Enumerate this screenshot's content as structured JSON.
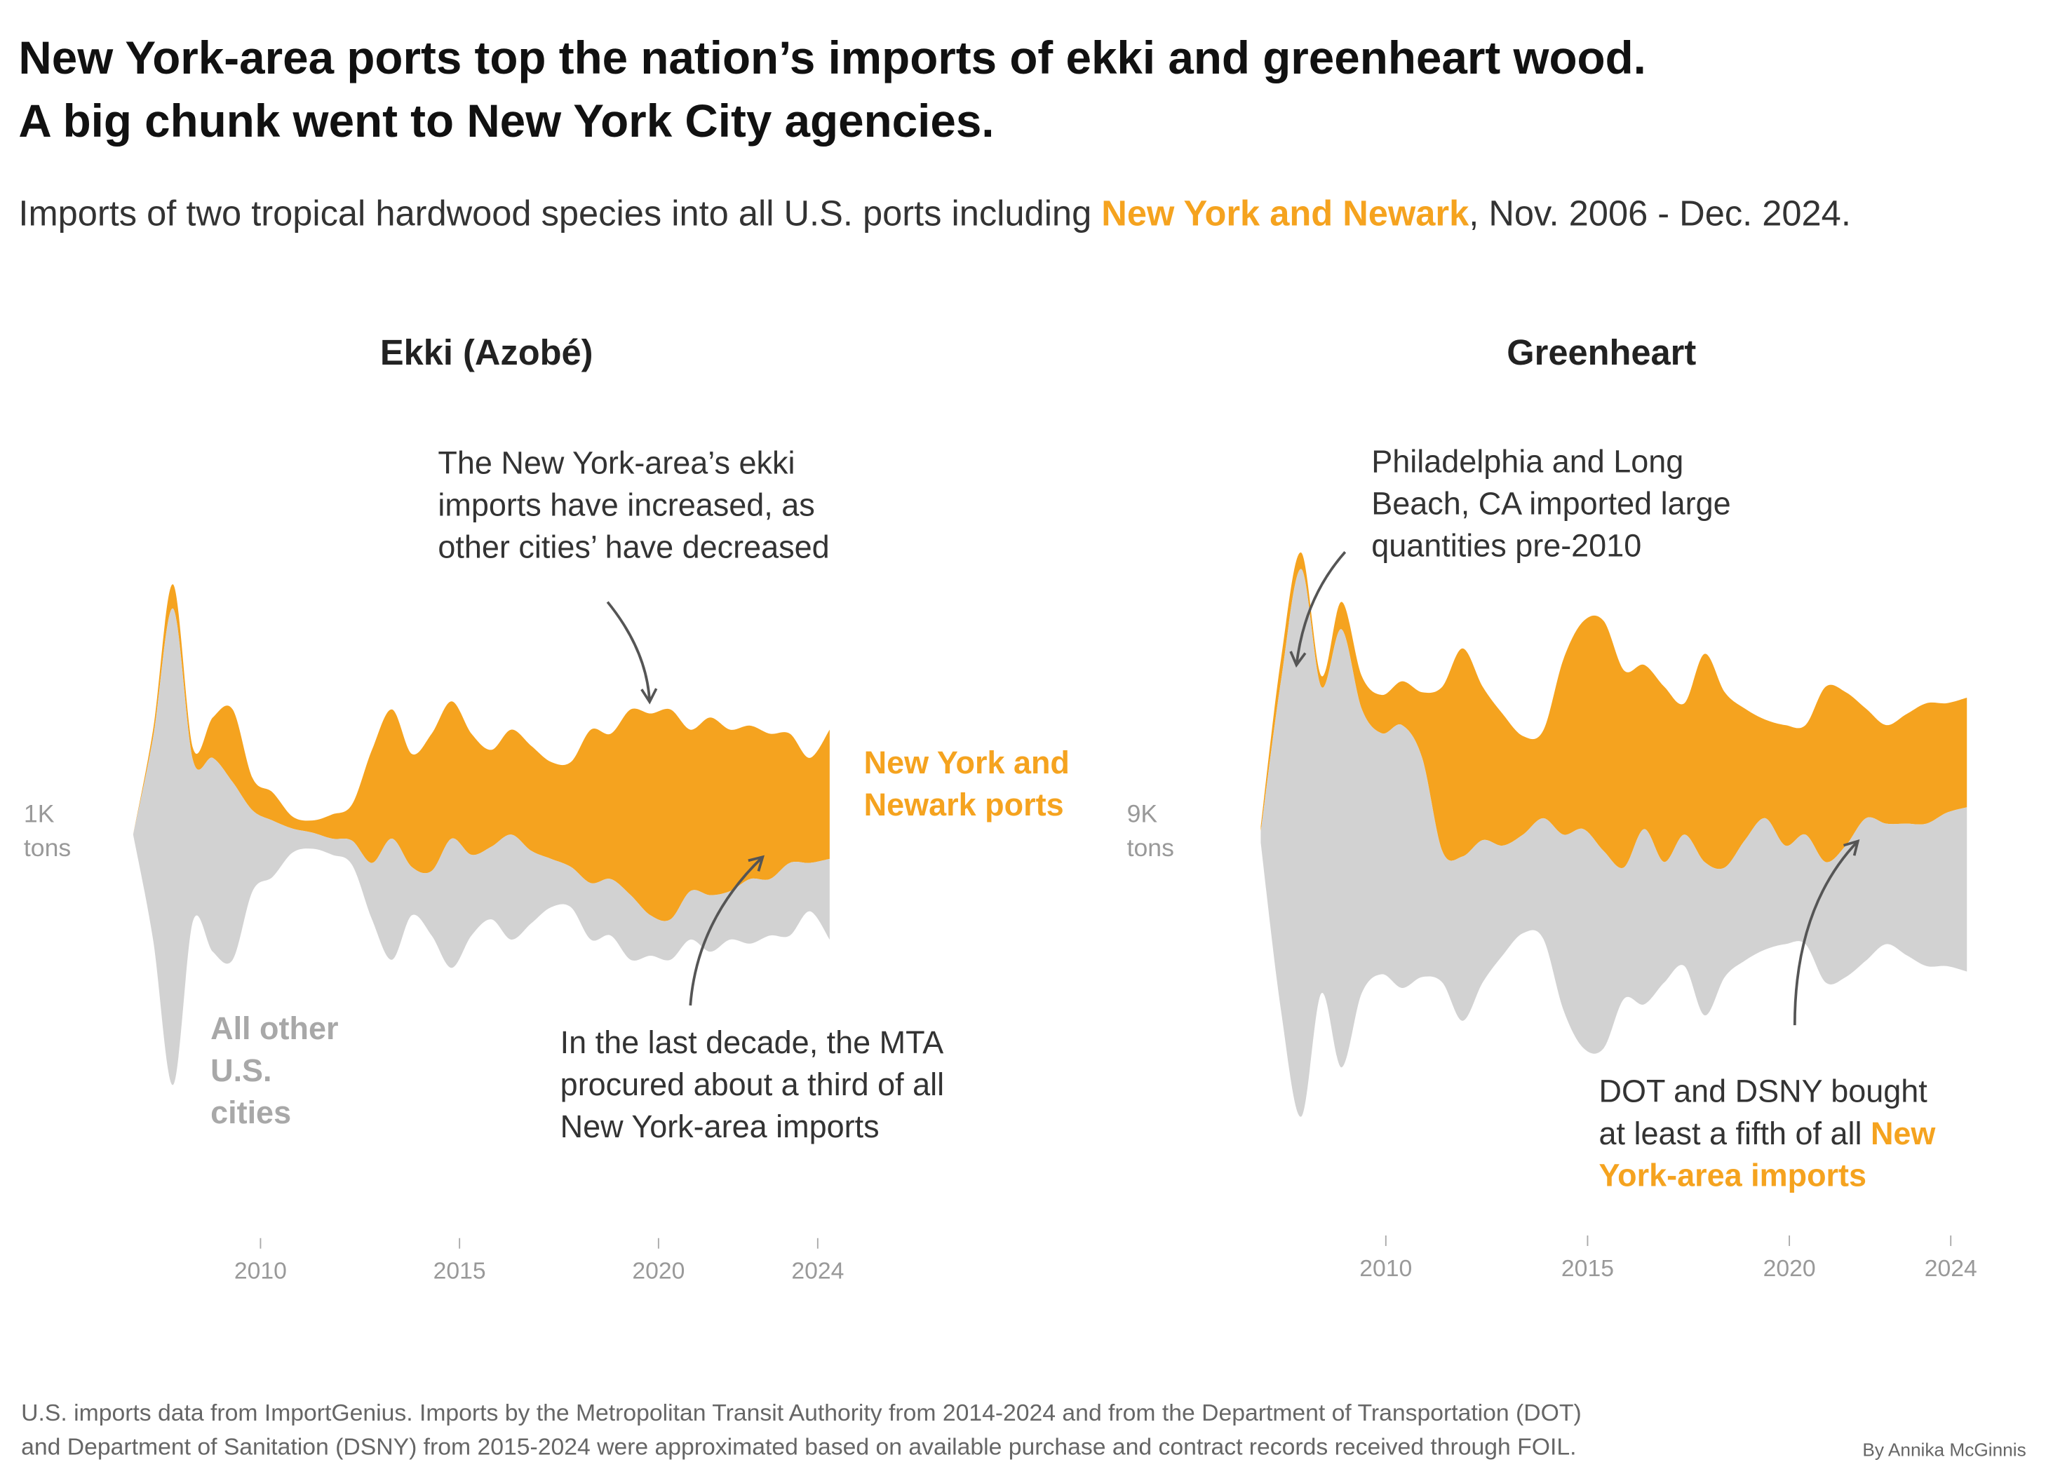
{
  "header": {
    "title": [
      "New York-area ports top the nation’s imports of ekki and greenheart wood.",
      "A big chunk went to New York City agencies."
    ],
    "subtitle": [
      {
        "text": "Imports of two tropical hardwood species into all U.S. ports including "
      },
      {
        "text": "New York and Newark",
        "color": "#f5a31f"
      },
      {
        "text": ", Nov. 2006 - Dec. 2024."
      }
    ]
  },
  "chart_data": [
    {
      "type": "streamgraph",
      "title": "Ekki (Azobé)",
      "x": [
        2006.8,
        2007.3,
        2007.8,
        2008.3,
        2008.8,
        2009.3,
        2009.8,
        2010.3,
        2010.8,
        2011.3,
        2011.8,
        2012.3,
        2012.8,
        2013.3,
        2013.8,
        2014.3,
        2014.8,
        2015.3,
        2015.8,
        2016.3,
        2016.8,
        2017.3,
        2017.8,
        2018.3,
        2018.8,
        2019.3,
        2019.8,
        2020.3,
        2020.8,
        2021.3,
        2021.8,
        2022.3,
        2022.8,
        2023.3,
        2023.8,
        2024.3
      ],
      "series": [
        {
          "name": "New York and Newark ports",
          "color": "#f5a31f",
          "values": [
            0,
            100,
            300,
            150,
            500,
            900,
            400,
            350,
            150,
            150,
            300,
            450,
            1400,
            1600,
            1400,
            1700,
            1700,
            1500,
            1200,
            1300,
            1300,
            1200,
            1300,
            1900,
            1800,
            2300,
            2500,
            2600,
            2000,
            2200,
            2000,
            1900,
            1800,
            1600,
            1300,
            1600
          ]
        },
        {
          "name": "All other U.S. cities",
          "color": "#d2d2d2",
          "values": [
            0,
            2500,
            5900,
            2000,
            2400,
            2200,
            1000,
            700,
            300,
            200,
            200,
            300,
            700,
            1500,
            600,
            800,
            1600,
            1000,
            900,
            1300,
            900,
            600,
            500,
            700,
            700,
            800,
            500,
            500,
            600,
            700,
            600,
            800,
            700,
            900,
            600,
            1000
          ]
        }
      ],
      "xlim": [
        2006.1,
        2024.5
      ],
      "ylim": [
        -3500,
        3500
      ],
      "xticks": [
        2010,
        2015,
        2020,
        2024
      ],
      "scale_label": [
        "1K",
        "tons"
      ],
      "annotations": [
        {
          "lines": [
            "The New York-area’s ekki",
            "imports have increased, as",
            "other cities’ have decreased"
          ]
        },
        {
          "lines": [
            "In the last decade, the MTA",
            "procured about a third of all",
            "New York-area imports"
          ]
        }
      ]
    },
    {
      "type": "streamgraph",
      "title": "Greenheart",
      "x": [
        2006.9,
        2007.4,
        2007.9,
        2008.4,
        2008.9,
        2009.4,
        2009.9,
        2010.4,
        2010.9,
        2011.4,
        2011.9,
        2012.4,
        2012.9,
        2013.4,
        2013.9,
        2014.4,
        2014.9,
        2015.4,
        2015.9,
        2016.4,
        2016.9,
        2017.4,
        2017.9,
        2018.4,
        2018.9,
        2019.4,
        2019.9,
        2020.4,
        2020.9,
        2021.4,
        2021.9,
        2022.4,
        2022.9,
        2023.4,
        2023.9,
        2024.4
      ],
      "series": [
        {
          "color": "#f5a31f",
          "values": [
            500,
            2000,
            1500,
            1000,
            2500,
            3000,
            3500,
            4000,
            6000,
            15000,
            19000,
            14000,
            12000,
            9000,
            8000,
            16000,
            19000,
            21000,
            18000,
            15000,
            16000,
            12000,
            19000,
            16000,
            12000,
            9000,
            11000,
            10000,
            16000,
            14000,
            10000,
            9000,
            10000,
            11000,
            10000,
            10000
          ]
        },
        {
          "color": "#d2d2d2",
          "values": [
            1000,
            30000,
            50000,
            28000,
            40000,
            26000,
            22000,
            24000,
            20000,
            12000,
            15000,
            13000,
            10000,
            9000,
            11000,
            16000,
            20000,
            18000,
            12000,
            16000,
            11000,
            12000,
            14000,
            10000,
            11000,
            12000,
            9000,
            10000,
            11000,
            12000,
            13000,
            11000,
            12000,
            13000,
            14000,
            15000
          ]
        }
      ],
      "xlim": [
        2005.7,
        2024.5
      ],
      "ylim": [
        -30000,
        30000
      ],
      "xticks": [
        2010,
        2015,
        2020,
        2024
      ],
      "scale_label": [
        "9K",
        "tons"
      ],
      "annotations": [
        {
          "lines": [
            "Philadelphia and Long",
            "Beach, CA imported large",
            "quantities pre-2010"
          ]
        },
        {
          "lines": [
            "DOT and DSNY bought",
            [
              {
                "text": "at least a fifth of all "
              },
              {
                "text": "New",
                "color": "#f5a31f"
              }
            ],
            [
              {
                "text": "York-area imports",
                "color": "#f5a31f"
              }
            ]
          ]
        }
      ]
    }
  ],
  "footer": {
    "note": [
      "U.S. imports data from ImportGenius. Imports by the Metropolitan Transit Authority from 2014-2024 and from the Department of Transportation (DOT)",
      "and Department of Sanitation (DSNY) from 2015-2024 were approximated based on available purchase and contract records received through FOIL."
    ],
    "credit": "By Annika McGinnis"
  }
}
